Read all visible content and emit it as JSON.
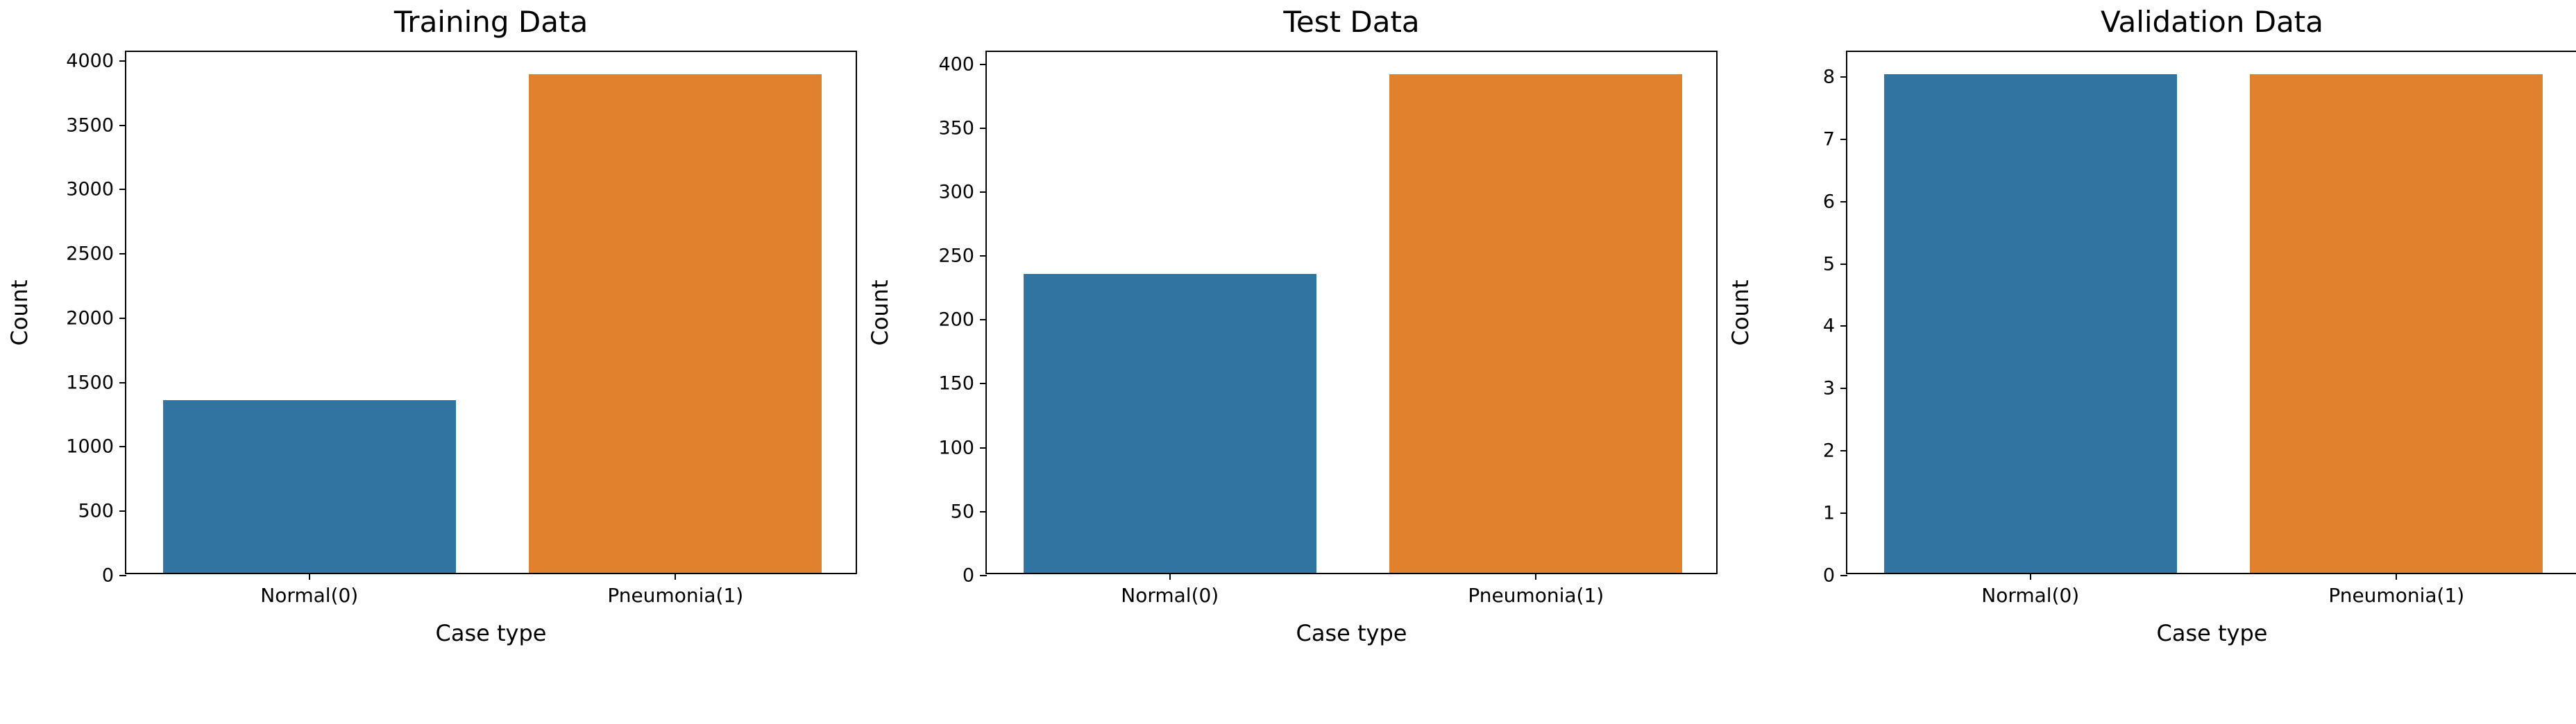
{
  "figure": {
    "background": "#ffffff",
    "text_color": "#000000",
    "spine_color": "#000000",
    "normal_bar_color": "#3274a1",
    "pneumonia_bar_color": "#e1812c"
  },
  "chart_data": [
    {
      "type": "bar",
      "title": "Training Data",
      "xlabel": "Case type",
      "ylabel": "Count",
      "categories": [
        "Normal(0)",
        "Pneumonia(1)"
      ],
      "values": [
        1341,
        3875
      ],
      "bar_colors": [
        "#3274a1",
        "#e1812c"
      ],
      "yticks": [
        0,
        500,
        1000,
        1500,
        2000,
        2500,
        3000,
        3500,
        4000
      ],
      "ylim": [
        0,
        4068.75
      ],
      "grid": false,
      "legend": "none"
    },
    {
      "type": "bar",
      "title": "Test Data",
      "xlabel": "Case type",
      "ylabel": "Count",
      "categories": [
        "Normal(0)",
        "Pneumonia(1)"
      ],
      "values": [
        234,
        390
      ],
      "bar_colors": [
        "#3274a1",
        "#e1812c"
      ],
      "yticks": [
        0,
        50,
        100,
        150,
        200,
        250,
        300,
        350,
        400
      ],
      "ylim": [
        0,
        409.5
      ],
      "grid": false,
      "legend": "none"
    },
    {
      "type": "bar",
      "title": "Validation Data",
      "xlabel": "Case type",
      "ylabel": "Count",
      "categories": [
        "Normal(0)",
        "Pneumonia(1)"
      ],
      "values": [
        8,
        8
      ],
      "bar_colors": [
        "#3274a1",
        "#e1812c"
      ],
      "yticks": [
        0,
        1,
        2,
        3,
        4,
        5,
        6,
        7,
        8
      ],
      "ylim": [
        0,
        8.4
      ],
      "grid": false,
      "legend": "none"
    }
  ]
}
